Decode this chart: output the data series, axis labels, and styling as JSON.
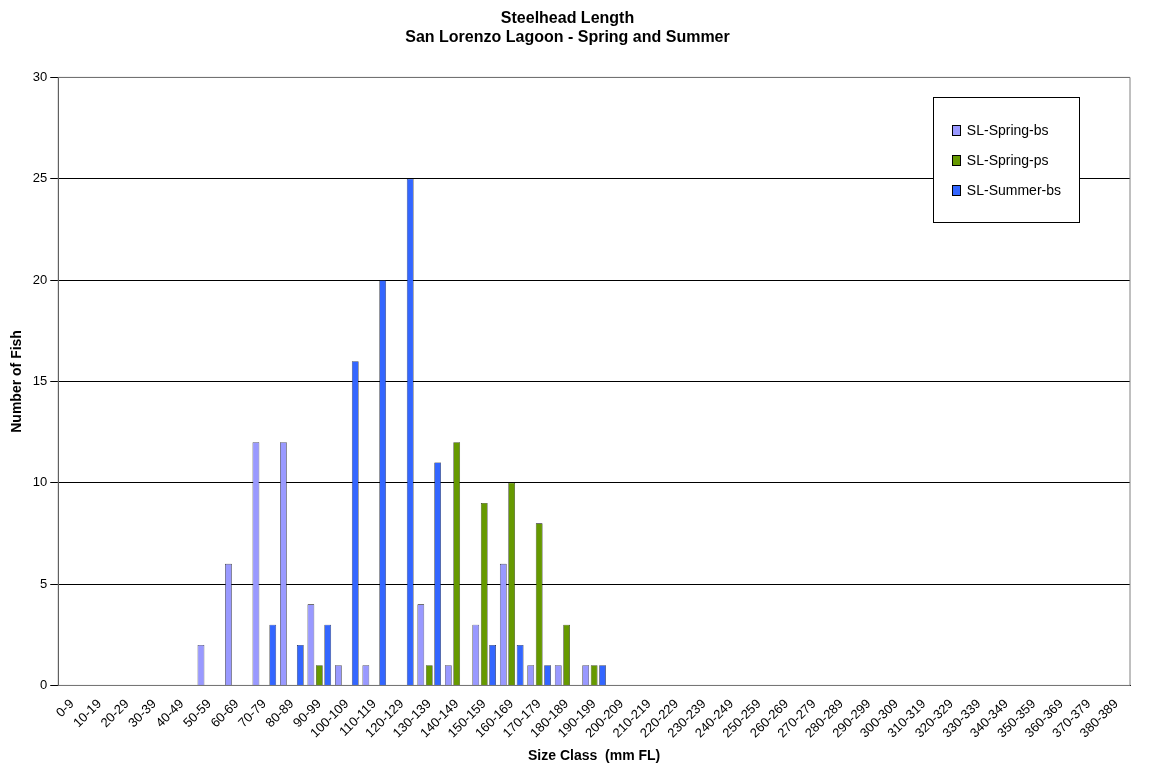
{
  "chart_data": {
    "type": "bar",
    "title": "Steelhead Length",
    "subtitle": "San Lorenzo Lagoon - Spring and Summer",
    "xlabel": "Size Class  (mm FL)",
    "ylabel": "Number of Fish",
    "categories": [
      "0-9",
      "10-19",
      "20-29",
      "30-39",
      "40-49",
      "50-59",
      "60-69",
      "70-79",
      "80-89",
      "90-99",
      "100-109",
      "110-119",
      "120-129",
      "130-139",
      "140-149",
      "150-159",
      "160-169",
      "170-179",
      "180-189",
      "190-199",
      "200-209",
      "210-219",
      "220-229",
      "230-239",
      "240-249",
      "250-259",
      "260-269",
      "270-279",
      "280-289",
      "290-299",
      "300-309",
      "310-319",
      "320-329",
      "330-339",
      "340-349",
      "350-359",
      "360-369",
      "370-379",
      "380-389"
    ],
    "series": [
      {
        "name": "SL-Spring-bs",
        "color": "#9999ff",
        "values": [
          null,
          null,
          null,
          null,
          null,
          2,
          6,
          12,
          12,
          4,
          1,
          1,
          null,
          4,
          1,
          3,
          6,
          1,
          1,
          1,
          null,
          null,
          null,
          null,
          null,
          null,
          null,
          null,
          null,
          null,
          null,
          null,
          null,
          null,
          null,
          null,
          null,
          null,
          null
        ]
      },
      {
        "name": "SL-Spring-ps",
        "color": "#669900",
        "values": [
          null,
          null,
          null,
          null,
          null,
          null,
          null,
          null,
          null,
          1,
          null,
          null,
          null,
          1,
          12,
          9,
          10,
          8,
          3,
          1,
          null,
          null,
          null,
          null,
          null,
          null,
          null,
          null,
          null,
          null,
          null,
          null,
          null,
          null,
          null,
          null,
          null,
          null,
          null
        ]
      },
      {
        "name": "SL-Summer-bs",
        "color": "#3366ff",
        "values": [
          null,
          null,
          null,
          null,
          null,
          null,
          null,
          3,
          2,
          3,
          16,
          20,
          25,
          11,
          null,
          2,
          2,
          1,
          null,
          1,
          null,
          null,
          null,
          null,
          null,
          null,
          null,
          null,
          null,
          null,
          null,
          null,
          null,
          null,
          null,
          null,
          null,
          null,
          null
        ]
      }
    ],
    "ylim": [
      0,
      30
    ],
    "yticks": [
      0,
      5,
      10,
      15,
      20,
      25,
      30
    ],
    "grid": "y",
    "legend": "top right"
  }
}
